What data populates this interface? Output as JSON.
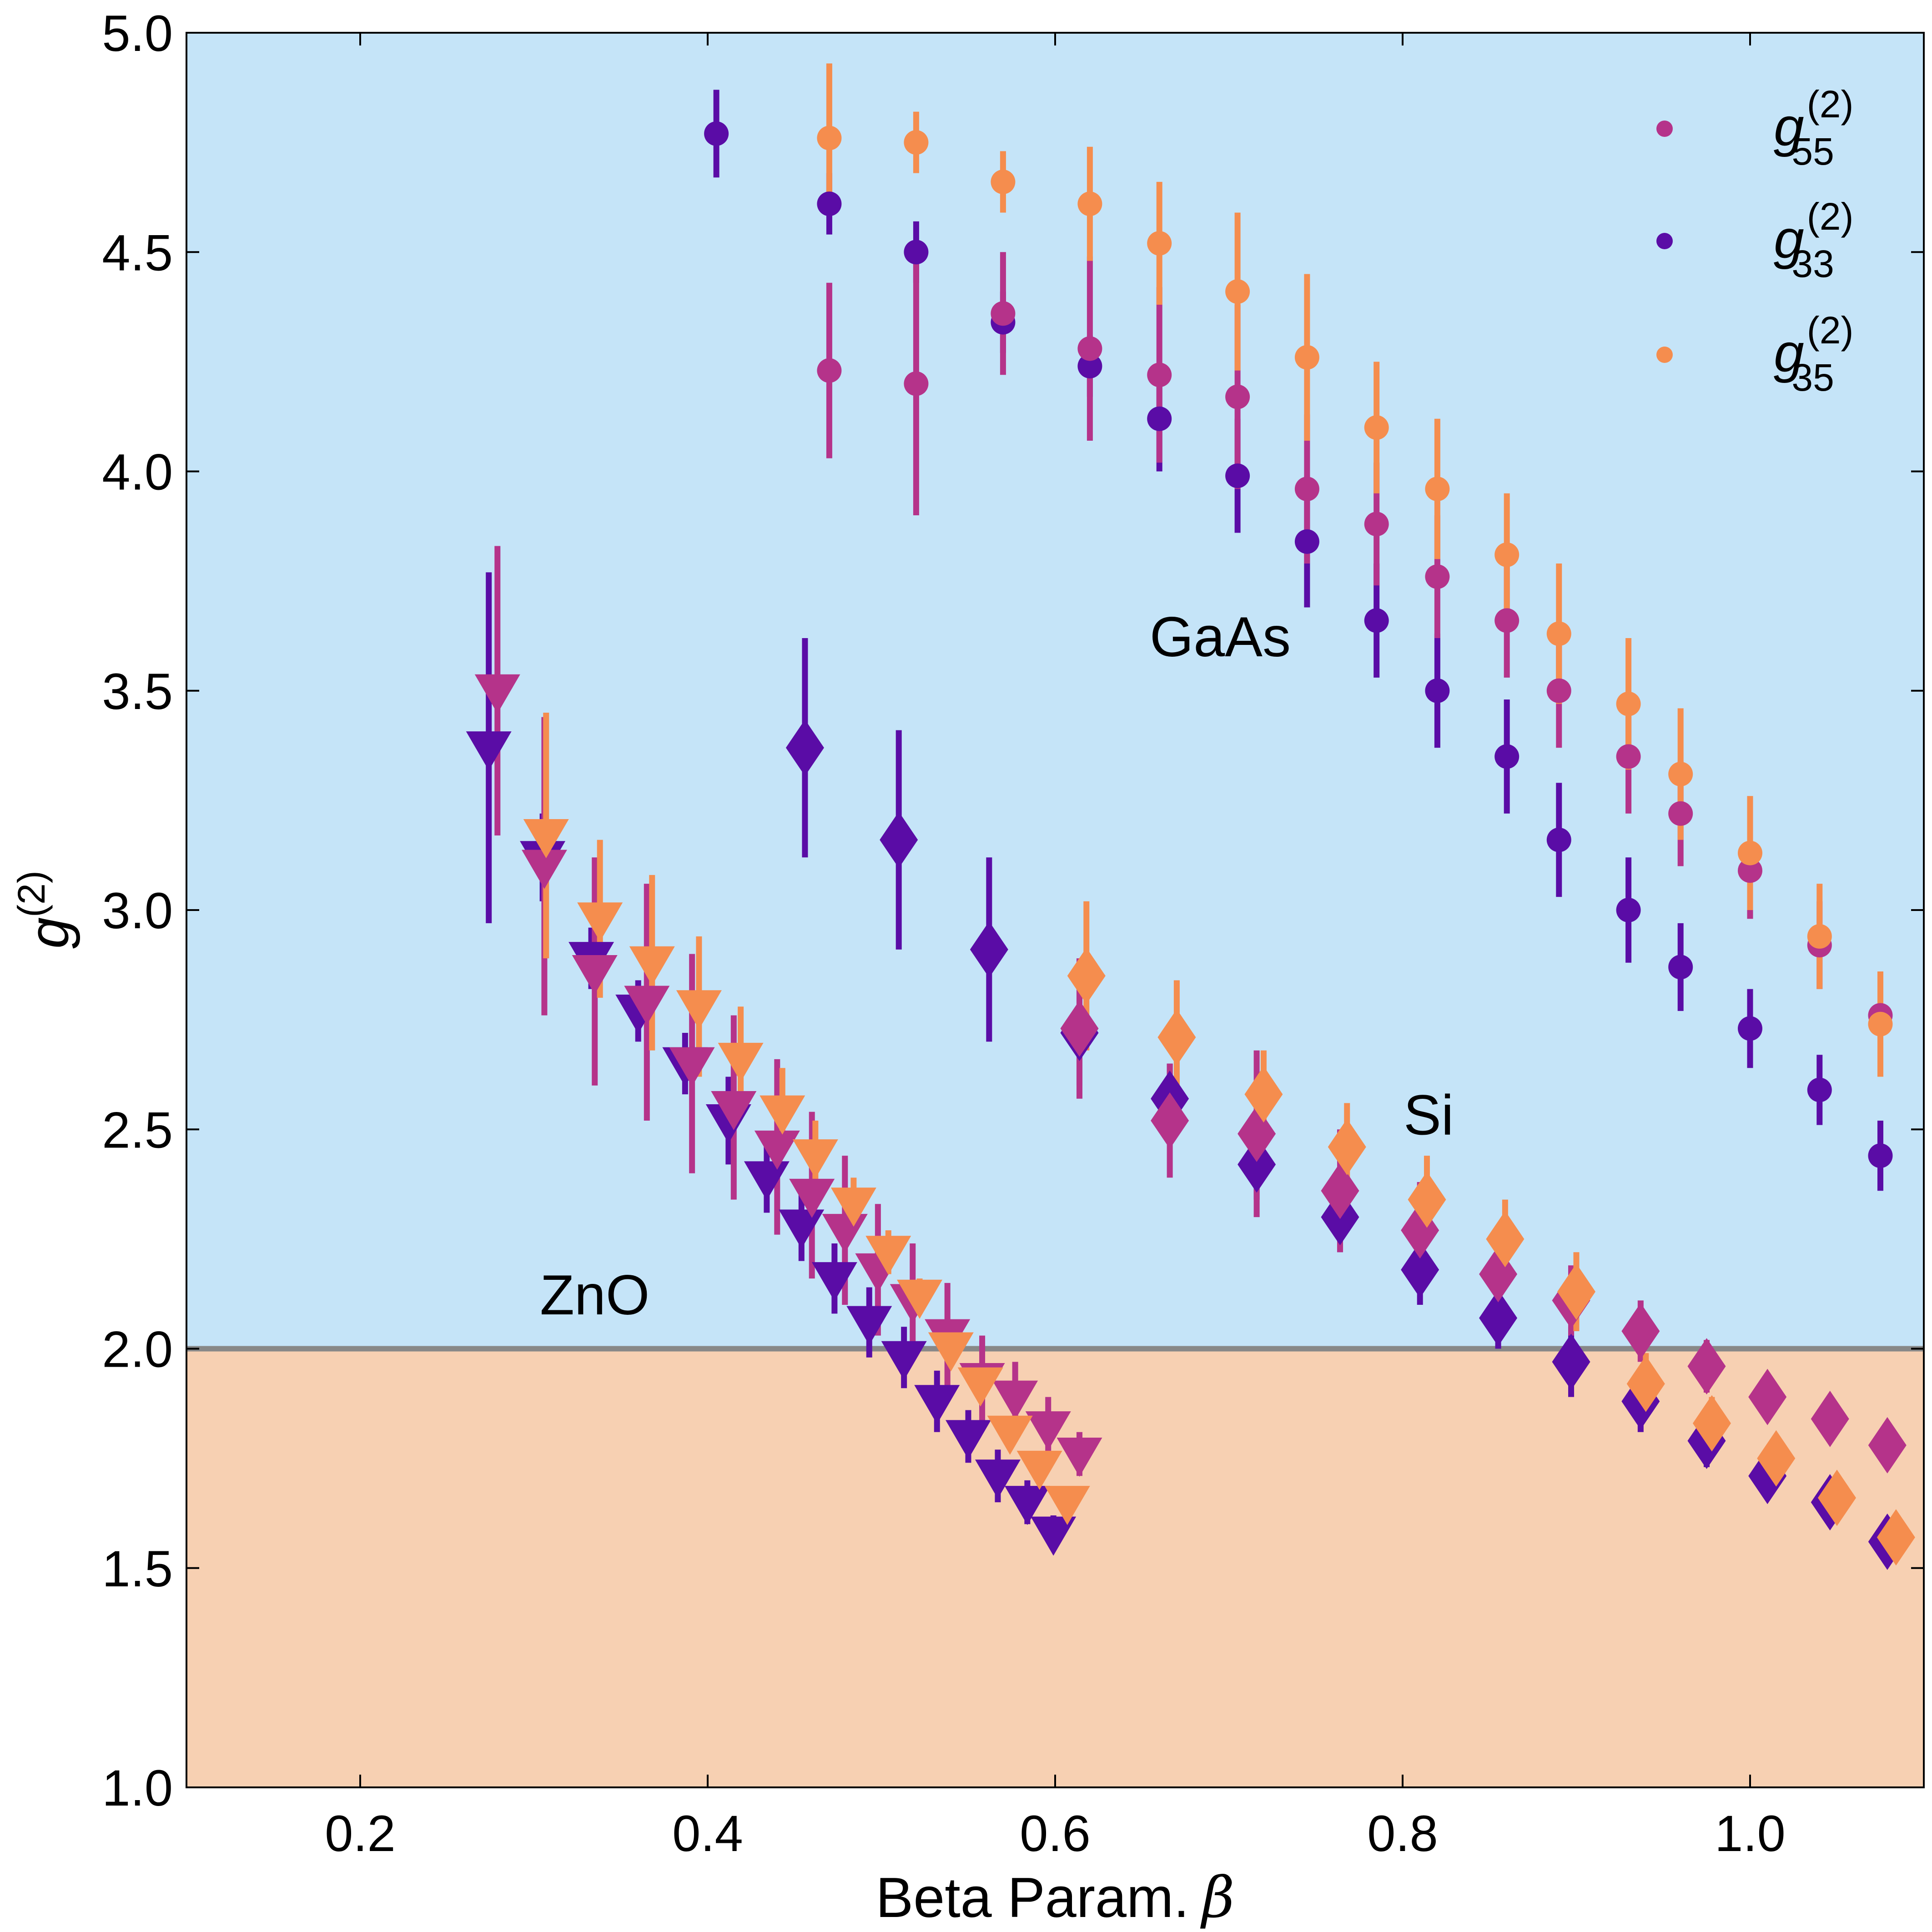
{
  "chart_data": {
    "type": "scatter",
    "title": "",
    "xlabel": "Beta Param.",
    "xlabel_symbol": "β",
    "ylabel": "g",
    "ylabel_superscript": "(2)",
    "xlim": [
      0.1,
      1.1
    ],
    "ylim": [
      1.0,
      5.0
    ],
    "xticks": [
      0.2,
      0.4,
      0.6,
      0.8,
      1.0
    ],
    "xtick_labels": [
      "0.2",
      "0.4",
      "0.6",
      "0.8",
      "1.0"
    ],
    "yticks": [
      1.0,
      1.5,
      2.0,
      2.5,
      3.0,
      3.5,
      4.0,
      4.5,
      5.0
    ],
    "ytick_labels": [
      "1.0",
      "1.5",
      "2.0",
      "2.5",
      "3.0",
      "3.5",
      "4.0",
      "4.5",
      "5.0"
    ],
    "threshold": 2.0,
    "region_colors": {
      "above": "#c5e4f8",
      "below": "#f7d0b2",
      "threshold_line": "#888888"
    },
    "region_labels": [
      {
        "text": "GaAs",
        "x": 0.695,
        "y": 3.62
      },
      {
        "text": "Si",
        "x": 0.815,
        "y": 2.53
      },
      {
        "text": "ZnO",
        "x": 0.335,
        "y": 2.12
      }
    ],
    "legend": {
      "position": "top-right",
      "entries": [
        {
          "base": "g",
          "sup": "(2)",
          "sub": "55",
          "color": "#b5338a"
        },
        {
          "base": "g",
          "sup": "(2)",
          "sub": "33",
          "color": "#5a0ca6"
        },
        {
          "base": "g",
          "sup": "(2)",
          "sub": "35",
          "color": "#f58d4e"
        }
      ]
    },
    "series": [
      {
        "name": "GaAs g33",
        "material": "GaAs",
        "component": "33",
        "marker": "circle",
        "color": "#5a0ca6",
        "x": [
          0.405,
          0.47,
          0.52,
          0.57,
          0.62,
          0.66,
          0.705,
          0.745,
          0.785,
          0.82,
          0.86,
          0.89,
          0.93,
          0.96,
          1.0,
          1.04,
          1.075
        ],
        "y": [
          4.77,
          4.61,
          4.5,
          4.34,
          4.24,
          4.12,
          3.99,
          3.84,
          3.66,
          3.5,
          3.35,
          3.16,
          3.0,
          2.87,
          2.73,
          2.59,
          2.44
        ],
        "err": [
          0.1,
          0.07,
          0.07,
          0.07,
          0.07,
          0.12,
          0.13,
          0.15,
          0.13,
          0.13,
          0.13,
          0.13,
          0.12,
          0.1,
          0.09,
          0.08,
          0.08
        ]
      },
      {
        "name": "GaAs g55",
        "material": "GaAs",
        "component": "55",
        "marker": "circle",
        "color": "#b5338a",
        "x": [
          0.47,
          0.52,
          0.57,
          0.62,
          0.66,
          0.705,
          0.745,
          0.785,
          0.82,
          0.86,
          0.89,
          0.93,
          0.96,
          1.0,
          1.04,
          1.075
        ],
        "y": [
          4.23,
          4.2,
          4.36,
          4.28,
          4.22,
          4.17,
          3.96,
          3.88,
          3.76,
          3.66,
          3.5,
          3.35,
          3.22,
          3.09,
          2.92,
          2.76
        ],
        "err": [
          0.2,
          0.3,
          0.14,
          0.21,
          0.2,
          0.21,
          0.17,
          0.14,
          0.14,
          0.13,
          0.13,
          0.13,
          0.12,
          0.11,
          0.1,
          0.1
        ]
      },
      {
        "name": "GaAs g35",
        "material": "GaAs",
        "component": "35",
        "marker": "circle",
        "color": "#f58d4e",
        "x": [
          0.47,
          0.52,
          0.57,
          0.62,
          0.66,
          0.705,
          0.745,
          0.785,
          0.82,
          0.86,
          0.89,
          0.93,
          0.96,
          1.0,
          1.04,
          1.075
        ],
        "y": [
          4.76,
          4.75,
          4.66,
          4.61,
          4.52,
          4.41,
          4.26,
          4.1,
          3.96,
          3.81,
          3.63,
          3.47,
          3.31,
          3.13,
          2.94,
          2.74
        ],
        "err": [
          0.17,
          0.07,
          0.07,
          0.13,
          0.14,
          0.18,
          0.19,
          0.15,
          0.16,
          0.14,
          0.16,
          0.15,
          0.15,
          0.13,
          0.12,
          0.12
        ]
      },
      {
        "name": "ZnO g33",
        "material": "ZnO",
        "component": "33",
        "marker": "triangle-down",
        "color": "#5a0ca6",
        "x": [
          0.274,
          0.305,
          0.333,
          0.36,
          0.387,
          0.412,
          0.434,
          0.454,
          0.473,
          0.493,
          0.513,
          0.532,
          0.55,
          0.567,
          0.584,
          0.599
        ],
        "y": [
          3.37,
          3.12,
          2.89,
          2.77,
          2.65,
          2.52,
          2.39,
          2.28,
          2.16,
          2.06,
          1.98,
          1.88,
          1.8,
          1.71,
          1.65,
          1.58
        ],
        "err": [
          0.4,
          0.1,
          0.07,
          0.07,
          0.07,
          0.1,
          0.08,
          0.08,
          0.08,
          0.08,
          0.07,
          0.07,
          0.06,
          0.06,
          0.05,
          0.04
        ]
      },
      {
        "name": "ZnO g55",
        "material": "ZnO",
        "component": "55",
        "marker": "triangle-down",
        "color": "#b5338a",
        "x": [
          0.279,
          0.306,
          0.335,
          0.365,
          0.391,
          0.415,
          0.44,
          0.46,
          0.479,
          0.498,
          0.518,
          0.538,
          0.558,
          0.577,
          0.596,
          0.614
        ],
        "y": [
          3.5,
          3.1,
          2.86,
          2.79,
          2.65,
          2.55,
          2.46,
          2.35,
          2.27,
          2.18,
          2.11,
          2.03,
          1.93,
          1.89,
          1.82,
          1.76
        ],
        "err": [
          0.33,
          0.34,
          0.26,
          0.27,
          0.25,
          0.21,
          0.2,
          0.19,
          0.17,
          0.15,
          0.13,
          0.12,
          0.1,
          0.08,
          0.07,
          0.05
        ]
      },
      {
        "name": "ZnO g35",
        "material": "ZnO",
        "component": "35",
        "marker": "triangle-down",
        "color": "#f58d4e",
        "x": [
          0.307,
          0.338,
          0.368,
          0.395,
          0.419,
          0.443,
          0.462,
          0.484,
          0.504,
          0.522,
          0.54,
          0.557,
          0.574,
          0.591,
          0.607
        ],
        "y": [
          3.17,
          2.98,
          2.88,
          2.78,
          2.66,
          2.54,
          2.44,
          2.33,
          2.22,
          2.12,
          2.0,
          1.92,
          1.81,
          1.73,
          1.65
        ],
        "err": [
          0.28,
          0.18,
          0.2,
          0.16,
          0.12,
          0.1,
          0.08,
          0.06,
          0.05,
          0.04,
          0.03,
          0.03,
          0.03,
          0.02,
          0.02
        ]
      },
      {
        "name": "Si g33",
        "material": "Si",
        "component": "33",
        "marker": "diamond",
        "color": "#5a0ca6",
        "x": [
          0.456,
          0.51,
          0.562,
          0.614,
          0.666,
          0.716,
          0.764,
          0.81,
          0.855,
          0.897,
          0.937,
          0.975,
          1.01,
          1.046,
          1.079
        ],
        "y": [
          3.37,
          3.16,
          2.91,
          2.72,
          2.57,
          2.42,
          2.3,
          2.18,
          2.07,
          1.97,
          1.88,
          1.79,
          1.71,
          1.65,
          1.56
        ],
        "err": [
          0.25,
          0.25,
          0.21,
          0.12,
          0.08,
          0.08,
          0.08,
          0.08,
          0.07,
          0.08,
          0.07,
          0.06,
          0.05,
          0.04,
          0.03
        ]
      },
      {
        "name": "Si g55",
        "material": "Si",
        "component": "55",
        "marker": "diamond",
        "color": "#b5338a",
        "x": [
          0.614,
          0.666,
          0.716,
          0.764,
          0.81,
          0.855,
          0.897,
          0.937,
          0.975,
          1.01,
          1.046,
          1.079
        ],
        "y": [
          2.73,
          2.52,
          2.49,
          2.36,
          2.27,
          2.17,
          2.11,
          2.04,
          1.96,
          1.89,
          1.84,
          1.78
        ],
        "err": [
          0.16,
          0.13,
          0.19,
          0.14,
          0.11,
          0.09,
          0.08,
          0.07,
          0.06,
          0.05,
          0.05,
          0.04
        ]
      },
      {
        "name": "Si g35",
        "material": "Si",
        "component": "35",
        "marker": "diamond",
        "color": "#f58d4e",
        "x": [
          0.618,
          0.67,
          0.72,
          0.768,
          0.814,
          0.859,
          0.9,
          0.94,
          0.978,
          1.015,
          1.05,
          1.084
        ],
        "y": [
          2.85,
          2.71,
          2.58,
          2.46,
          2.34,
          2.25,
          2.13,
          1.92,
          1.83,
          1.75,
          1.66,
          1.57
        ],
        "err": [
          0.17,
          0.13,
          0.1,
          0.1,
          0.1,
          0.09,
          0.09,
          0.07,
          0.06,
          0.05,
          0.05,
          0.04
        ]
      }
    ]
  }
}
